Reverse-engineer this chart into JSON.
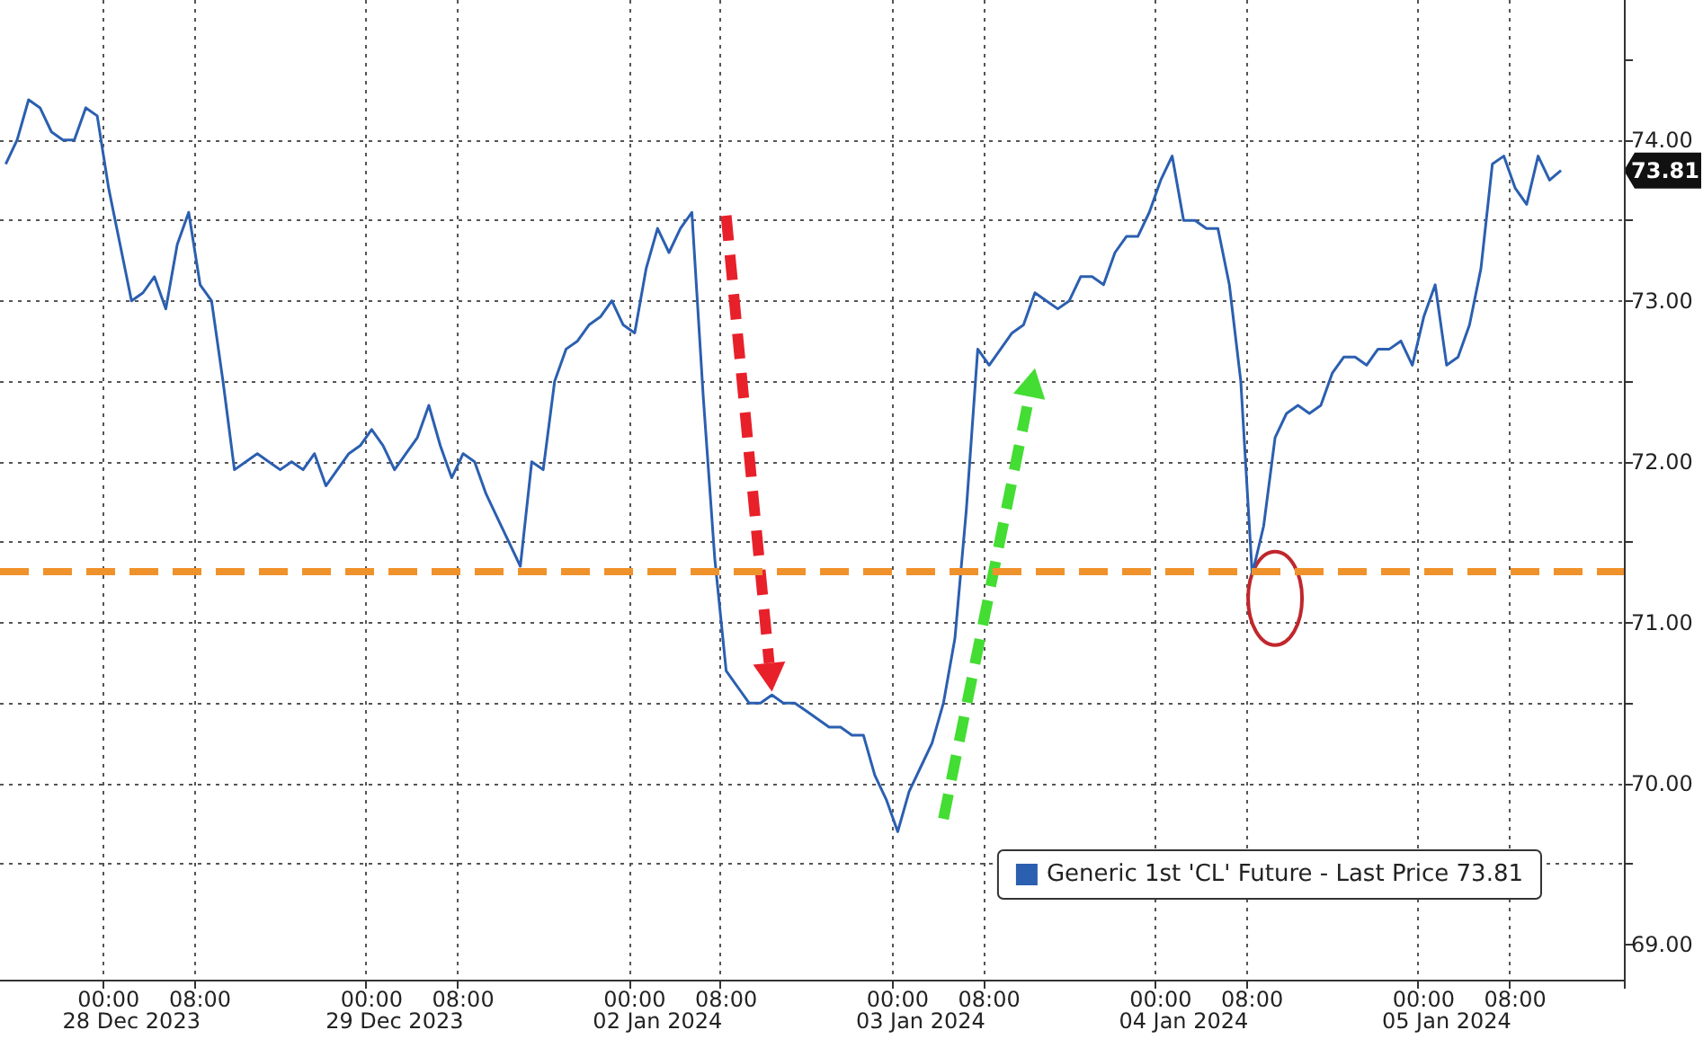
{
  "chart_data": {
    "type": "line",
    "categories": [
      null,
      null,
      null,
      null,
      null,
      null,
      null,
      null,
      null,
      "00:00",
      null,
      null,
      null,
      null,
      null,
      null,
      null,
      "08:00",
      null,
      null,
      null,
      null,
      null,
      null,
      null,
      null,
      null,
      null,
      null,
      null,
      null,
      null,
      "00:00",
      null,
      null,
      null,
      null,
      null,
      null,
      null,
      "08:00",
      null,
      null,
      null,
      null,
      null,
      null,
      null,
      null,
      null,
      null,
      null,
      null,
      null,
      null,
      "00:00",
      null,
      null,
      null,
      null,
      null,
      null,
      null,
      "08:00",
      null,
      null,
      null,
      null,
      null,
      null,
      null,
      null,
      null,
      null,
      null,
      null,
      null,
      null,
      "00:00",
      null,
      null,
      null,
      null,
      null,
      null,
      null,
      "08:00",
      null,
      null,
      null,
      null,
      null,
      null,
      null,
      null,
      null,
      null,
      null,
      null,
      null,
      null,
      "00:00",
      null,
      null,
      null,
      null,
      null,
      null,
      null,
      "08:00",
      null,
      null,
      null,
      null,
      null,
      null,
      null,
      null,
      null,
      null,
      null,
      null,
      null,
      null,
      "00:00",
      null,
      null,
      null,
      null,
      null,
      null,
      null,
      "08:00",
      null,
      null,
      null,
      null,
      null,
      null,
      null,
      null,
      null
    ],
    "series": [
      {
        "name": "Generic 1st 'CL' Future - Last Price 73.81",
        "color": "#2b5fb0",
        "values": [
          73.85,
          74.0,
          74.25,
          74.2,
          74.05,
          74.0,
          74.0,
          74.2,
          74.15,
          73.7,
          73.35,
          73.0,
          73.05,
          73.15,
          72.95,
          73.35,
          73.55,
          73.1,
          73.0,
          72.5,
          71.95,
          72.0,
          72.05,
          72.0,
          71.95,
          72.0,
          71.95,
          72.05,
          71.85,
          71.95,
          72.05,
          72.1,
          72.2,
          72.1,
          71.95,
          72.05,
          72.15,
          72.35,
          72.1,
          71.9,
          72.05,
          72.0,
          71.8,
          71.65,
          71.5,
          71.35,
          72.0,
          71.95,
          72.5,
          72.7,
          72.75,
          72.85,
          72.9,
          73.0,
          72.85,
          72.8,
          73.2,
          73.45,
          73.3,
          73.45,
          73.55,
          72.4,
          71.4,
          70.7,
          70.6,
          70.5,
          70.5,
          70.55,
          70.5,
          70.5,
          70.45,
          70.4,
          70.35,
          70.35,
          70.3,
          70.3,
          70.05,
          69.9,
          69.7,
          69.95,
          70.1,
          70.25,
          70.5,
          70.9,
          71.7,
          72.7,
          72.6,
          72.7,
          72.8,
          72.85,
          73.05,
          73.0,
          72.95,
          73.0,
          73.15,
          73.15,
          73.1,
          73.3,
          73.4,
          73.4,
          73.55,
          73.75,
          73.9,
          73.5,
          73.5,
          73.45,
          73.45,
          73.1,
          72.5,
          71.3,
          71.6,
          72.15,
          72.3,
          72.35,
          72.3,
          72.35,
          72.55,
          72.65,
          72.65,
          72.6,
          72.7,
          72.7,
          72.75,
          72.6,
          72.9,
          73.1,
          72.6,
          72.65,
          72.85,
          73.2,
          73.85,
          73.9,
          73.7,
          73.6,
          73.9,
          73.75,
          73.81,
          null,
          null,
          null,
          null,
          null
        ]
      }
    ],
    "ylim": [
      68.78,
      74.87
    ],
    "yticks": [
      {
        "value": 69,
        "label": "69.00"
      },
      {
        "value": 69.5,
        "label": null
      },
      {
        "value": 70,
        "label": "70.00"
      },
      {
        "value": 70.5,
        "label": null
      },
      {
        "value": 71,
        "label": "71.00"
      },
      {
        "value": 71.5,
        "label": null
      },
      {
        "value": 72,
        "label": "72.00"
      },
      {
        "value": 72.5,
        "label": null
      },
      {
        "value": 73,
        "label": "73.00"
      },
      {
        "value": 73.5,
        "label": null
      },
      {
        "value": 74,
        "label": "74.00"
      },
      {
        "value": 74.5,
        "label": null
      }
    ],
    "ref_lines": [
      {
        "axis": "y",
        "value": 71.32,
        "color": "#f0922b",
        "line_style": "dashed"
      }
    ],
    "annotations": [
      "28 Dec 2023",
      "29 Dec 2023",
      "02 Jan 2024",
      "03 Jan 2024",
      "04 Jan 2024",
      "05 Jan 2024",
      {
        "text": "73.81",
        "y": 73.81
      }
    ],
    "grid": true,
    "legend": "bottom right",
    "marker": "none",
    "line_style": "solid"
  }
}
